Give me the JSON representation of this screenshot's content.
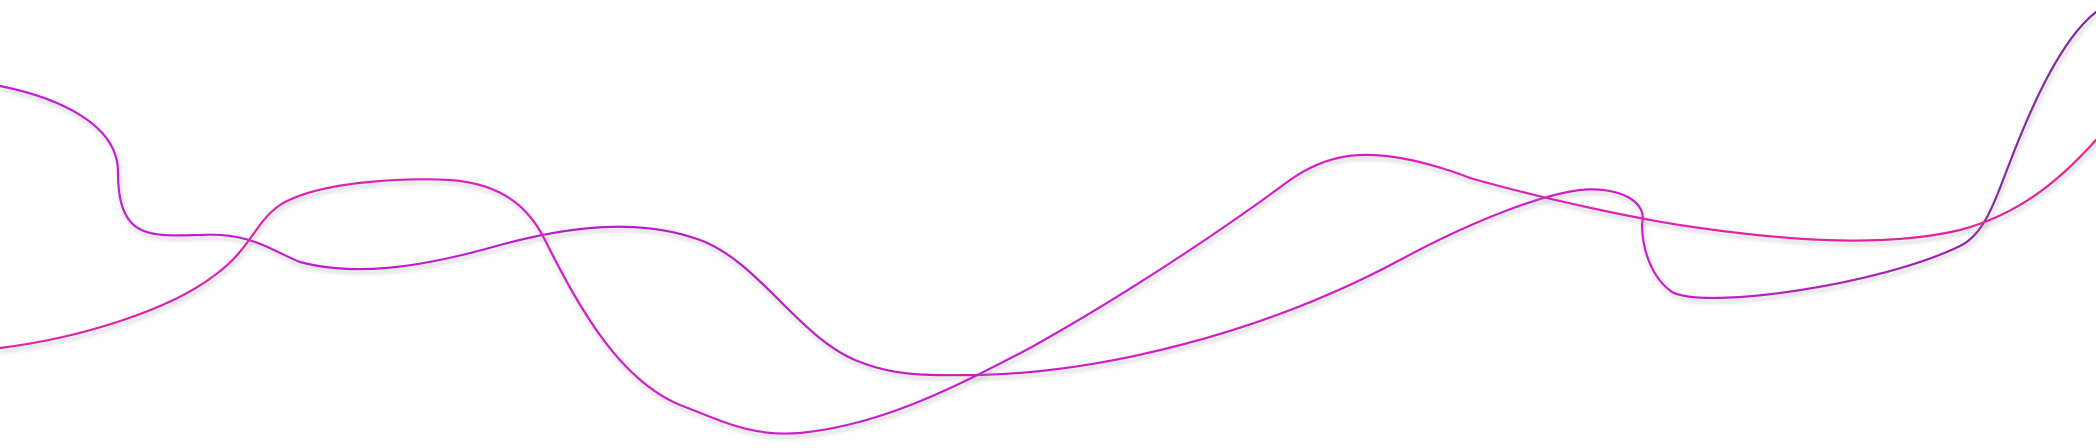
{
  "artwork": {
    "background_color": "#ffffff",
    "curves": [
      {
        "name": "upper-curve",
        "gradient": [
          "#c81fd8",
          "#b81ecb",
          "#d81fc0",
          "#cc1ccf",
          "#7a2a9a"
        ]
      },
      {
        "name": "lower-curve",
        "gradient": [
          "#e0259e",
          "#d81fc4",
          "#c61fd2",
          "#e020b8",
          "#e8208f"
        ]
      }
    ],
    "shadow_color": "#a0a0a0"
  }
}
